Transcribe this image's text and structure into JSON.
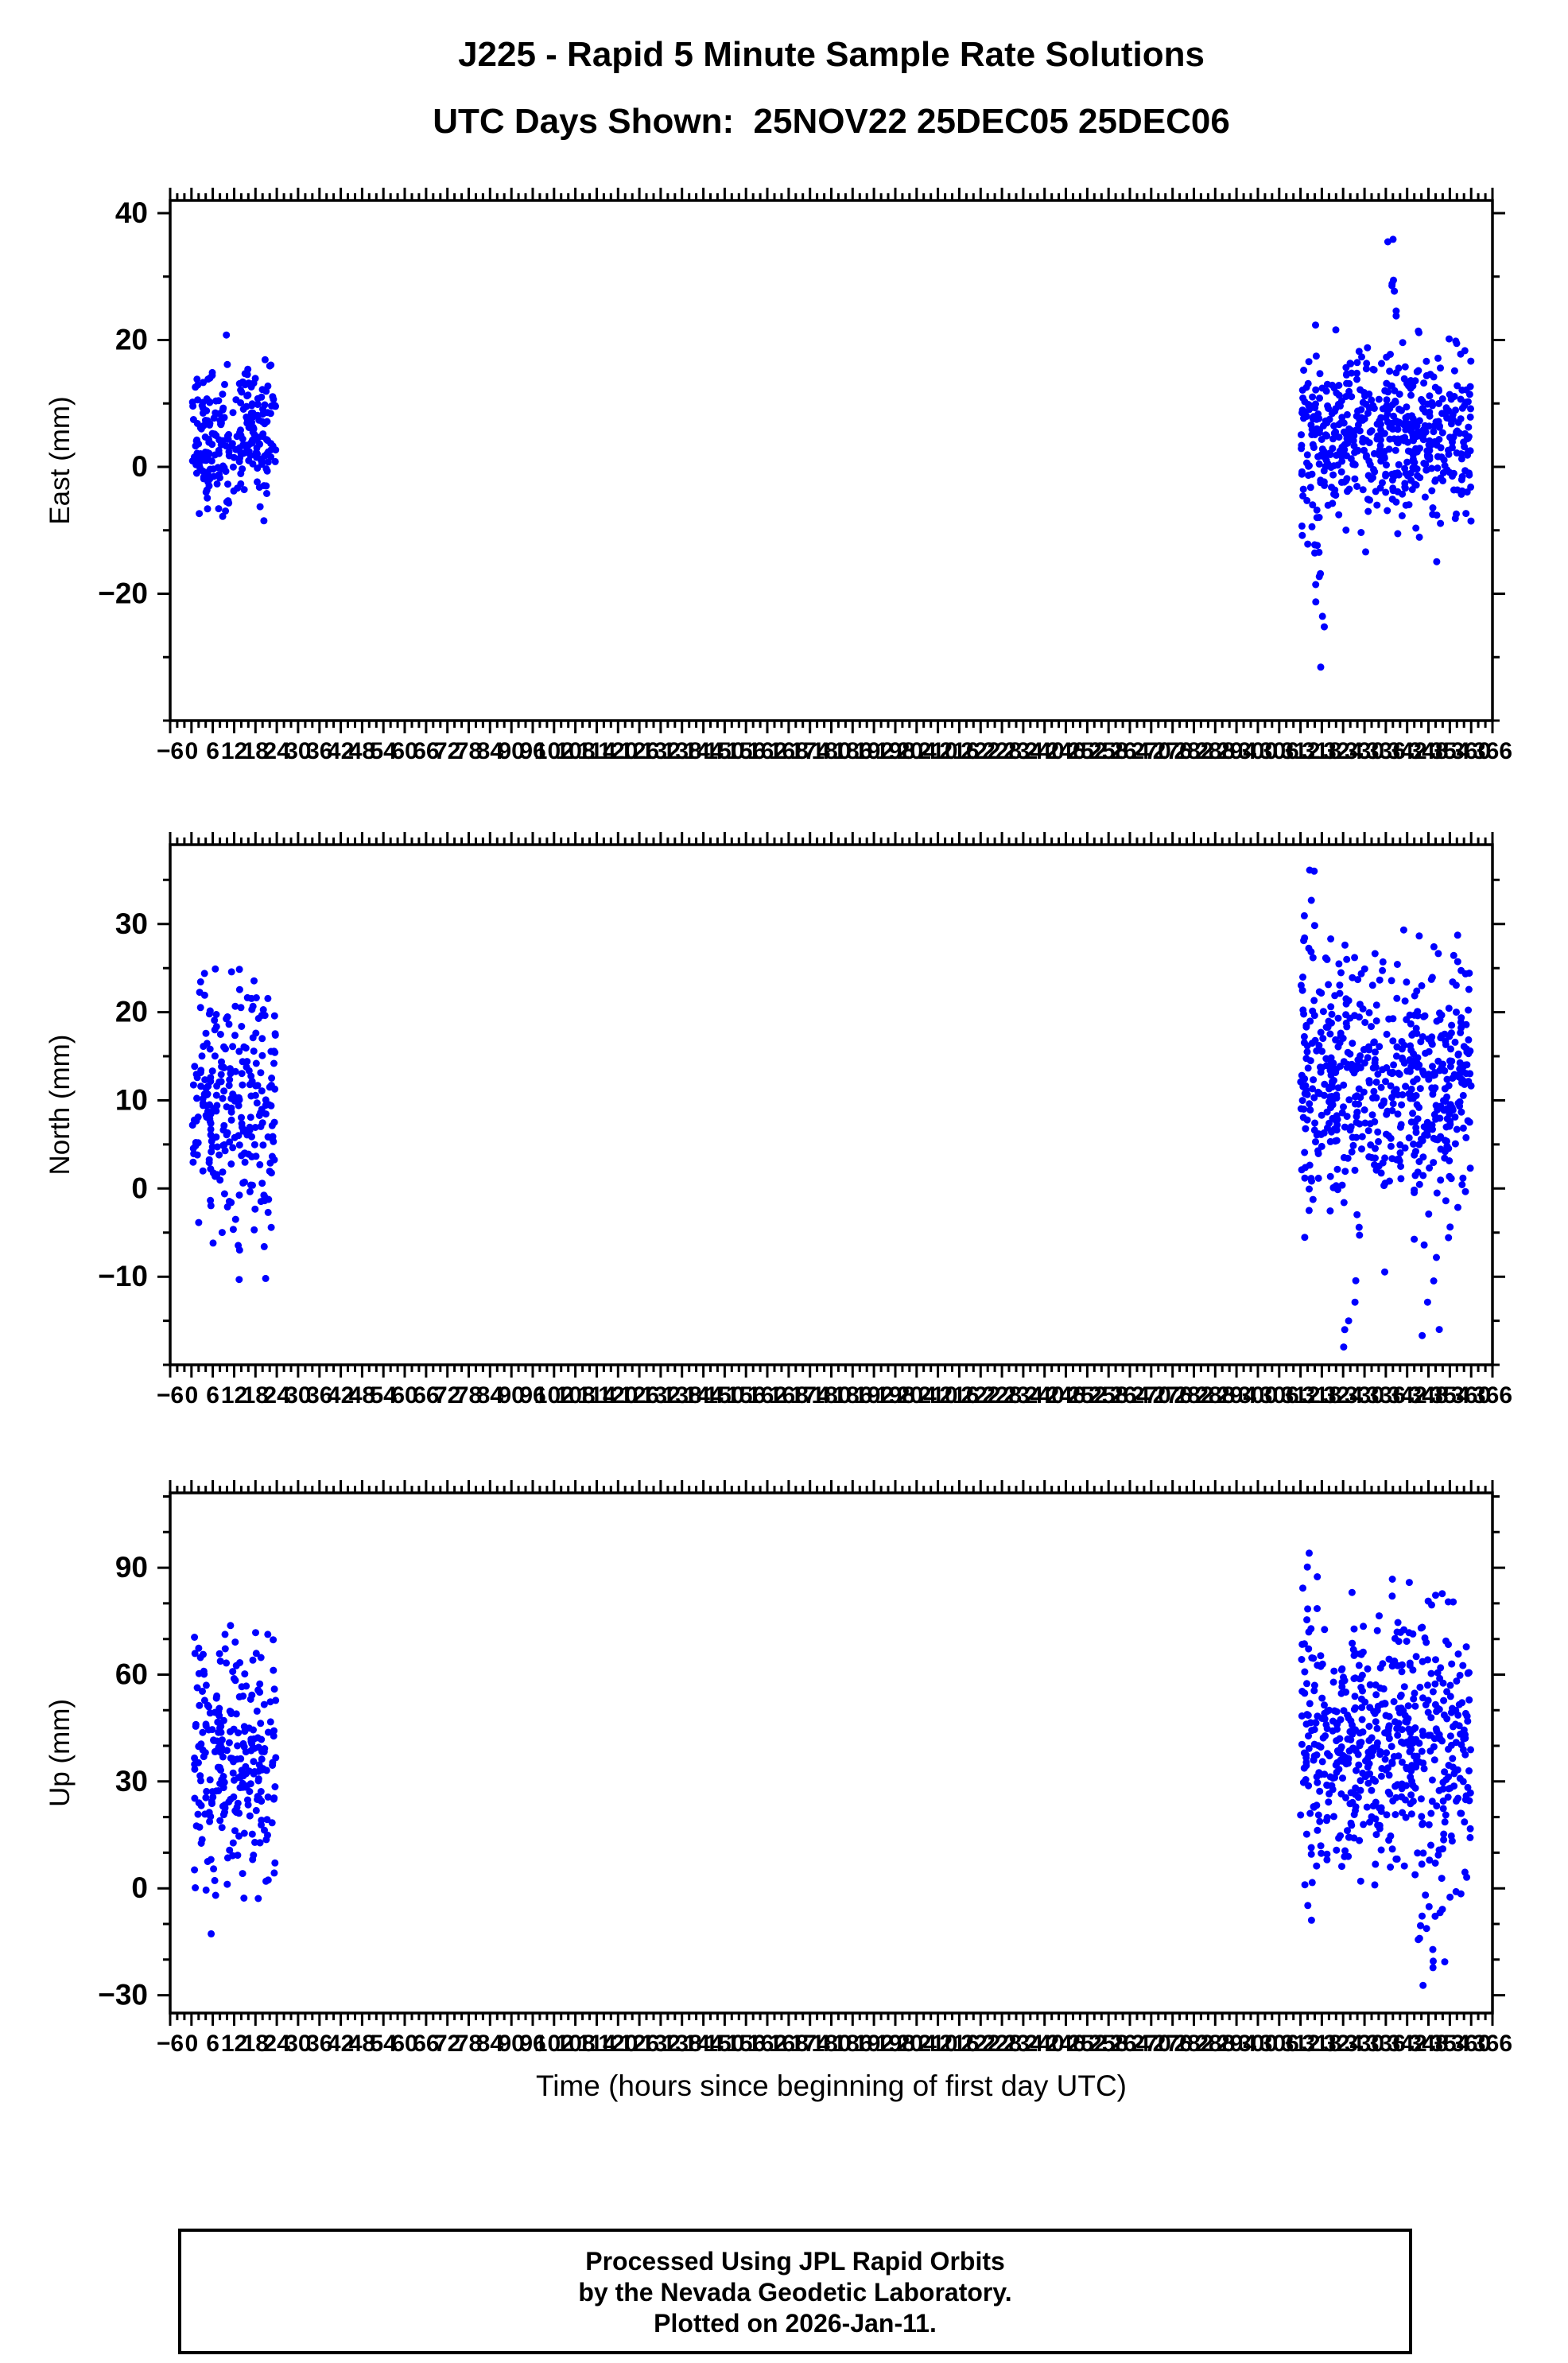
{
  "chart_data": {
    "type": "scatter",
    "title_line1": "J225 - Rapid 5 Minute Sample Rate Solutions",
    "title_line2": "UTC Days Shown:  25NOV22 25DEC05 25DEC06",
    "xlabel": "Time (hours since beginning of first day UTC)",
    "point_color": "#0000ff",
    "axis_color": "#000000",
    "x_range": [
      -6,
      366
    ],
    "x_major": 6,
    "x_minor": 2,
    "legend": "none",
    "grid": false,
    "panels": [
      {
        "name": "East",
        "ylabel": "East (mm)",
        "y_range": [
          -40,
          42
        ],
        "y_ticks": [
          -20,
          0,
          20,
          40
        ],
        "y_minor": 10,
        "clusters": [
          {
            "x0": 0.3,
            "x1": 23.7,
            "count": 260,
            "mean": 5,
            "std": 5.5,
            "ymin": -10,
            "ymax": 23
          },
          {
            "x0": 312,
            "x1": 360,
            "count": 560,
            "mean": 5,
            "std": 6.5,
            "ymin": -16,
            "ymax": 25
          },
          {
            "x0": 316,
            "x1": 319,
            "count": 14,
            "mean": -16,
            "std": 11,
            "ymin": -36,
            "ymax": 2
          },
          {
            "x0": 336,
            "x1": 339,
            "count": 12,
            "mean": 22,
            "std": 10,
            "ymin": 5,
            "ymax": 40
          }
        ]
      },
      {
        "name": "North",
        "ylabel": "North (mm)",
        "y_range": [
          -20,
          39
        ],
        "y_ticks": [
          -10,
          0,
          10,
          20,
          30
        ],
        "y_minor": 5,
        "clusters": [
          {
            "x0": 0.3,
            "x1": 23.7,
            "count": 260,
            "mean": 9,
            "std": 7,
            "ymin": -11,
            "ymax": 32
          },
          {
            "x0": 312,
            "x1": 360,
            "count": 560,
            "mean": 12,
            "std": 7.5,
            "ymin": -12,
            "ymax": 30
          },
          {
            "x0": 312,
            "x1": 316,
            "count": 12,
            "mean": 26,
            "std": 8,
            "ymin": 8,
            "ymax": 37
          },
          {
            "x0": 322,
            "x1": 352,
            "count": 10,
            "mean": -12,
            "std": 4,
            "ymin": -19,
            "ymax": -5
          }
        ]
      },
      {
        "name": "Up",
        "ylabel": "Up (mm)",
        "y_range": [
          -35,
          111
        ],
        "y_ticks": [
          -30,
          0,
          30,
          60,
          90
        ],
        "y_minor": 10,
        "clusters": [
          {
            "x0": 0.3,
            "x1": 23.7,
            "count": 260,
            "mean": 36,
            "std": 17,
            "ymin": -28,
            "ymax": 89
          },
          {
            "x0": 312,
            "x1": 360,
            "count": 560,
            "mean": 40,
            "std": 18,
            "ymin": -15,
            "ymax": 95
          },
          {
            "x0": 313,
            "x1": 318,
            "count": 12,
            "mean": 82,
            "std": 15,
            "ymin": 50,
            "ymax": 105
          },
          {
            "x0": 345,
            "x1": 355,
            "count": 12,
            "mean": -15,
            "std": 10,
            "ymin": -33,
            "ymax": 5
          }
        ]
      }
    ],
    "footer": [
      "Processed Using JPL Rapid Orbits",
      "by the Nevada Geodetic Laboratory.",
      "Plotted on 2026-Jan-11."
    ]
  }
}
